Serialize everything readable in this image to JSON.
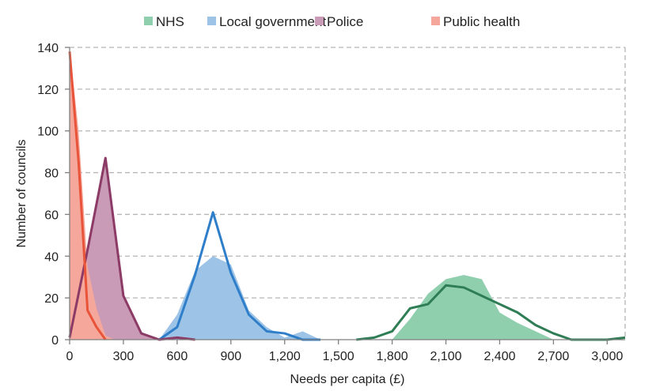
{
  "chart_data": {
    "type": "area",
    "title": "",
    "xlabel": "Needs per capita (£)",
    "ylabel": "Number of councils",
    "xlim": [
      0,
      3100
    ],
    "ylim": [
      0,
      140
    ],
    "x_ticks": [
      0,
      300,
      600,
      900,
      1200,
      1500,
      1800,
      2100,
      2400,
      2700,
      3000
    ],
    "x_tick_labels": [
      "0",
      "300",
      "600",
      "900",
      "1,200",
      "1,500",
      "1,800",
      "2,100",
      "2,400",
      "2,700",
      "3,000"
    ],
    "y_ticks": [
      0,
      20,
      40,
      60,
      80,
      100,
      120,
      140
    ],
    "y_tick_labels": [
      "0",
      "20",
      "40",
      "60",
      "80",
      "100",
      "120",
      "140"
    ],
    "grid": "horizontal dashed",
    "legend": "top",
    "series": [
      {
        "name": "NHS",
        "fill_color": "#8fcfae",
        "line_color": "#2e7d55",
        "area": [
          [
            1800,
            0
          ],
          [
            1900,
            10
          ],
          [
            2000,
            22
          ],
          [
            2100,
            29
          ],
          [
            2200,
            31
          ],
          [
            2300,
            29
          ],
          [
            2400,
            13
          ],
          [
            2500,
            8
          ],
          [
            2600,
            4
          ],
          [
            2700,
            0
          ]
        ],
        "line": [
          [
            1600,
            0
          ],
          [
            1700,
            1
          ],
          [
            1800,
            4
          ],
          [
            1900,
            15
          ],
          [
            2000,
            17
          ],
          [
            2100,
            26
          ],
          [
            2200,
            25
          ],
          [
            2300,
            21
          ],
          [
            2400,
            17
          ],
          [
            2500,
            13
          ],
          [
            2600,
            7
          ],
          [
            2700,
            3
          ],
          [
            2800,
            0
          ],
          [
            2900,
            0
          ],
          [
            3000,
            0
          ],
          [
            3100,
            1
          ]
        ]
      },
      {
        "name": "Local government",
        "fill_color": "#9dc3e6",
        "line_color": "#2e7ec9",
        "area": [
          [
            500,
            0
          ],
          [
            600,
            12
          ],
          [
            700,
            33
          ],
          [
            800,
            40
          ],
          [
            900,
            36
          ],
          [
            1000,
            14
          ],
          [
            1100,
            6
          ],
          [
            1200,
            1
          ],
          [
            1300,
            4
          ],
          [
            1400,
            0
          ]
        ],
        "line": [
          [
            500,
            0
          ],
          [
            600,
            6
          ],
          [
            700,
            31
          ],
          [
            800,
            61
          ],
          [
            900,
            32
          ],
          [
            1000,
            12
          ],
          [
            1100,
            4
          ],
          [
            1200,
            3
          ],
          [
            1300,
            0
          ],
          [
            1400,
            0
          ]
        ]
      },
      {
        "name": "Police",
        "fill_color": "#c99bb6",
        "line_color": "#8c3a66",
        "area": [
          [
            0,
            0
          ],
          [
            100,
            44
          ],
          [
            200,
            85
          ],
          [
            300,
            20
          ],
          [
            400,
            3
          ],
          [
            500,
            0
          ]
        ],
        "line": [
          [
            0,
            1
          ],
          [
            100,
            43
          ],
          [
            200,
            87
          ],
          [
            300,
            21
          ],
          [
            400,
            3
          ],
          [
            500,
            0
          ],
          [
            600,
            1
          ],
          [
            700,
            0
          ]
        ]
      },
      {
        "name": "Public health",
        "fill_color": "#f4a79a",
        "line_color": "#e8533a",
        "area": [
          [
            0,
            140
          ],
          [
            50,
            100
          ],
          [
            100,
            35
          ],
          [
            150,
            15
          ],
          [
            200,
            2
          ],
          [
            250,
            0
          ],
          [
            0,
            0
          ]
        ],
        "line": [
          [
            0,
            138
          ],
          [
            50,
            85
          ],
          [
            100,
            14
          ],
          [
            150,
            6
          ],
          [
            200,
            0
          ]
        ]
      }
    ]
  },
  "colors": {
    "gridline": "#b5b5b5",
    "axis": "#7f7f7f",
    "text": "#222222"
  }
}
